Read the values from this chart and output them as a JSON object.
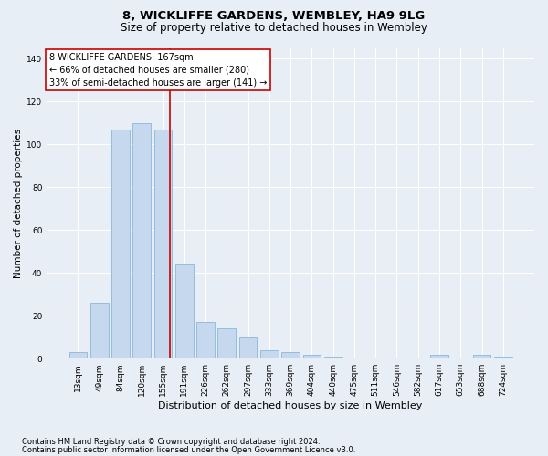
{
  "title": "8, WICKLIFFE GARDENS, WEMBLEY, HA9 9LG",
  "subtitle": "Size of property relative to detached houses in Wembley",
  "xlabel": "Distribution of detached houses by size in Wembley",
  "ylabel": "Number of detached properties",
  "categories": [
    "13sqm",
    "49sqm",
    "84sqm",
    "120sqm",
    "155sqm",
    "191sqm",
    "226sqm",
    "262sqm",
    "297sqm",
    "333sqm",
    "369sqm",
    "404sqm",
    "440sqm",
    "475sqm",
    "511sqm",
    "546sqm",
    "582sqm",
    "617sqm",
    "653sqm",
    "688sqm",
    "724sqm"
  ],
  "values": [
    3,
    26,
    107,
    110,
    107,
    44,
    17,
    14,
    10,
    4,
    3,
    2,
    1,
    0,
    0,
    0,
    0,
    2,
    0,
    2,
    1
  ],
  "bar_color": "#c5d8ee",
  "bar_edgecolor": "#7aadd4",
  "vline_color": "#cc0000",
  "annotation_text": "8 WICKLIFFE GARDENS: 167sqm\n← 66% of detached houses are smaller (280)\n33% of semi-detached houses are larger (141) →",
  "annotation_box_edgecolor": "#cc0000",
  "ylim": [
    0,
    145
  ],
  "yticks": [
    0,
    20,
    40,
    60,
    80,
    100,
    120,
    140
  ],
  "background_color": "#e8eef5",
  "plot_bg_color": "#e8eef5",
  "grid_color": "#ffffff",
  "footer_line1": "Contains HM Land Registry data © Crown copyright and database right 2024.",
  "footer_line2": "Contains public sector information licensed under the Open Government Licence v3.0.",
  "title_fontsize": 9.5,
  "subtitle_fontsize": 8.5,
  "xlabel_fontsize": 8,
  "ylabel_fontsize": 7.5,
  "tick_fontsize": 6.5,
  "annotation_fontsize": 7,
  "footer_fontsize": 6
}
